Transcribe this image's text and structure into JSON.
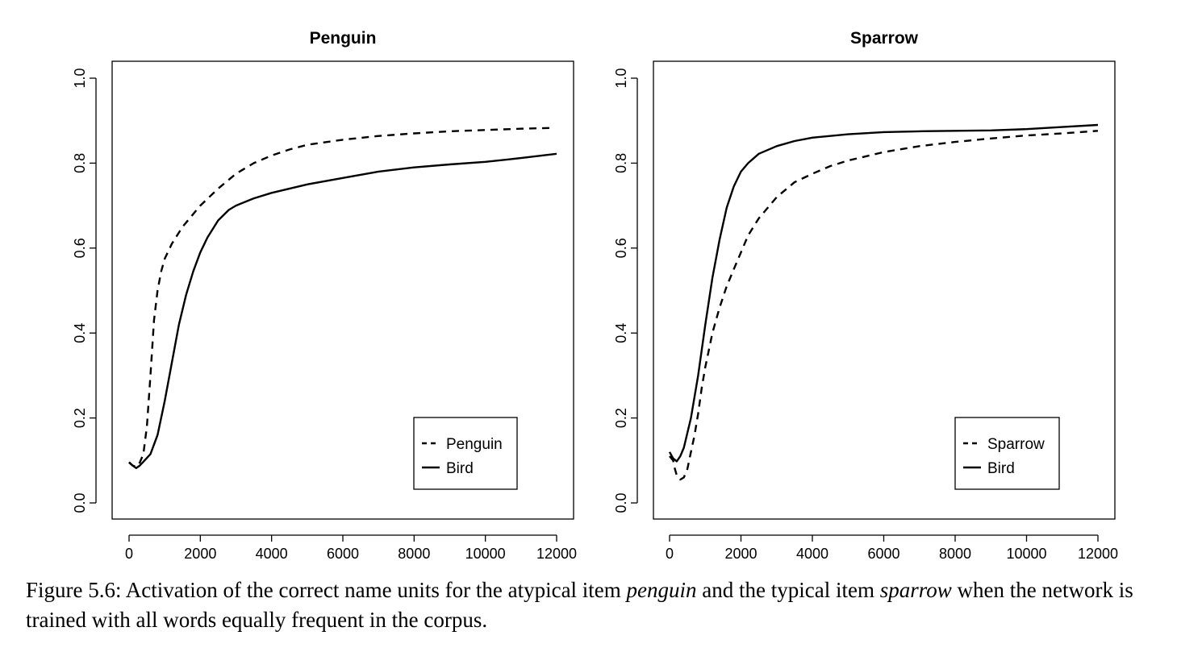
{
  "chart_data": [
    {
      "type": "line",
      "title": "Penguin",
      "xlabel": "",
      "ylabel": "",
      "xlim": [
        0,
        12000
      ],
      "ylim": [
        0,
        1
      ],
      "x_ticks": [
        0,
        2000,
        4000,
        6000,
        8000,
        10000,
        12000
      ],
      "y_ticks": [
        0.0,
        0.2,
        0.4,
        0.6,
        0.8,
        1.0
      ],
      "y_tick_labels": [
        "0.0",
        "0.2",
        "0.4",
        "0.6",
        "0.8",
        "1.0"
      ],
      "grid": false,
      "legend_position": "bottom-right",
      "series": [
        {
          "name": "Penguin",
          "style": "dashed",
          "points": [
            [
              0,
              0.095
            ],
            [
              100,
              0.088
            ],
            [
              200,
              0.085
            ],
            [
              300,
              0.095
            ],
            [
              400,
              0.115
            ],
            [
              500,
              0.18
            ],
            [
              600,
              0.3
            ],
            [
              700,
              0.43
            ],
            [
              800,
              0.5
            ],
            [
              900,
              0.545
            ],
            [
              1000,
              0.575
            ],
            [
              1200,
              0.61
            ],
            [
              1500,
              0.65
            ],
            [
              2000,
              0.7
            ],
            [
              2500,
              0.74
            ],
            [
              3000,
              0.775
            ],
            [
              3500,
              0.8
            ],
            [
              4000,
              0.818
            ],
            [
              4500,
              0.832
            ],
            [
              5000,
              0.843
            ],
            [
              6000,
              0.855
            ],
            [
              7000,
              0.864
            ],
            [
              8000,
              0.87
            ],
            [
              9000,
              0.875
            ],
            [
              10000,
              0.878
            ],
            [
              11000,
              0.881
            ],
            [
              11900,
              0.883
            ]
          ]
        },
        {
          "name": "Bird",
          "style": "solid",
          "points": [
            [
              0,
              0.096
            ],
            [
              100,
              0.088
            ],
            [
              200,
              0.082
            ],
            [
              300,
              0.088
            ],
            [
              400,
              0.097
            ],
            [
              600,
              0.115
            ],
            [
              800,
              0.16
            ],
            [
              1000,
              0.24
            ],
            [
              1200,
              0.33
            ],
            [
              1400,
              0.42
            ],
            [
              1600,
              0.49
            ],
            [
              1800,
              0.545
            ],
            [
              2000,
              0.59
            ],
            [
              2200,
              0.625
            ],
            [
              2500,
              0.665
            ],
            [
              2800,
              0.69
            ],
            [
              3000,
              0.7
            ],
            [
              3500,
              0.717
            ],
            [
              4000,
              0.73
            ],
            [
              5000,
              0.75
            ],
            [
              6000,
              0.765
            ],
            [
              7000,
              0.78
            ],
            [
              8000,
              0.79
            ],
            [
              9000,
              0.797
            ],
            [
              10000,
              0.803
            ],
            [
              11000,
              0.812
            ],
            [
              12000,
              0.822
            ]
          ]
        }
      ]
    },
    {
      "type": "line",
      "title": "Sparrow",
      "xlabel": "",
      "ylabel": "",
      "xlim": [
        0,
        12000
      ],
      "ylim": [
        0,
        1
      ],
      "x_ticks": [
        0,
        2000,
        4000,
        6000,
        8000,
        10000,
        12000
      ],
      "y_ticks": [
        0.0,
        0.2,
        0.4,
        0.6,
        0.8,
        1.0
      ],
      "y_tick_labels": [
        "0.0",
        "0.2",
        "0.4",
        "0.6",
        "0.8",
        "1.0"
      ],
      "grid": false,
      "legend_position": "bottom-right",
      "series": [
        {
          "name": "Sparrow",
          "style": "dashed",
          "points": [
            [
              0,
              0.11
            ],
            [
              100,
              0.1
            ],
            [
              150,
              0.08
            ],
            [
              200,
              0.065
            ],
            [
              300,
              0.055
            ],
            [
              400,
              0.06
            ],
            [
              500,
              0.08
            ],
            [
              600,
              0.12
            ],
            [
              700,
              0.16
            ],
            [
              800,
              0.21
            ],
            [
              900,
              0.27
            ],
            [
              1000,
              0.32
            ],
            [
              1200,
              0.4
            ],
            [
              1400,
              0.46
            ],
            [
              1600,
              0.51
            ],
            [
              1800,
              0.55
            ],
            [
              2000,
              0.59
            ],
            [
              2200,
              0.63
            ],
            [
              2500,
              0.67
            ],
            [
              3000,
              0.72
            ],
            [
              3500,
              0.755
            ],
            [
              4000,
              0.775
            ],
            [
              4500,
              0.793
            ],
            [
              5000,
              0.806
            ],
            [
              6000,
              0.826
            ],
            [
              7000,
              0.84
            ],
            [
              8000,
              0.85
            ],
            [
              9000,
              0.858
            ],
            [
              10000,
              0.865
            ],
            [
              11000,
              0.87
            ],
            [
              12000,
              0.876
            ]
          ]
        },
        {
          "name": "Bird",
          "style": "solid",
          "points": [
            [
              0,
              0.12
            ],
            [
              100,
              0.105
            ],
            [
              200,
              0.098
            ],
            [
              300,
              0.11
            ],
            [
              400,
              0.13
            ],
            [
              600,
              0.2
            ],
            [
              800,
              0.3
            ],
            [
              1000,
              0.42
            ],
            [
              1200,
              0.53
            ],
            [
              1400,
              0.62
            ],
            [
              1600,
              0.695
            ],
            [
              1800,
              0.745
            ],
            [
              2000,
              0.78
            ],
            [
              2200,
              0.8
            ],
            [
              2500,
              0.822
            ],
            [
              3000,
              0.84
            ],
            [
              3500,
              0.852
            ],
            [
              4000,
              0.86
            ],
            [
              5000,
              0.868
            ],
            [
              6000,
              0.873
            ],
            [
              7000,
              0.875
            ],
            [
              8000,
              0.876
            ],
            [
              9000,
              0.877
            ],
            [
              10000,
              0.88
            ],
            [
              11000,
              0.885
            ],
            [
              12000,
              0.89
            ]
          ]
        }
      ]
    }
  ],
  "caption": {
    "label": "Figure 5.6:",
    "text_1": " Activation of the correct name units for the atypical item ",
    "em_1": "penguin",
    "text_2": " and the typical item ",
    "em_2": "sparrow",
    "text_3": " when the network is trained with all words equally frequent in the corpus."
  }
}
